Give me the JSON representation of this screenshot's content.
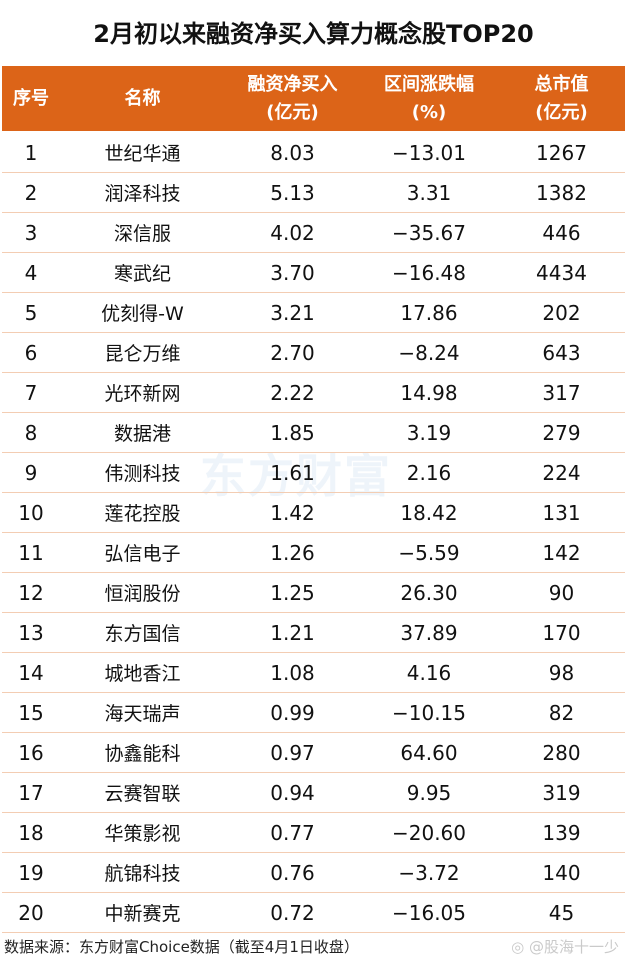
{
  "title": "2月初以来融资净买入算力概念股TOP20",
  "headers": [
    [
      "序号",
      ""
    ],
    [
      "名称",
      ""
    ],
    [
      "融资净买入",
      "(亿元)"
    ],
    [
      "区间涨跌幅",
      "(%)"
    ],
    [
      "总市值",
      "(亿元)"
    ]
  ],
  "rows": [
    [
      "1",
      "世纪华通",
      "8.03",
      "−13.01",
      "1267"
    ],
    [
      "2",
      "润泽科技",
      "5.13",
      "3.31",
      "1382"
    ],
    [
      "3",
      "深信服",
      "4.02",
      "−35.67",
      "446"
    ],
    [
      "4",
      "寒武纪",
      "3.70",
      "−16.48",
      "4434"
    ],
    [
      "5",
      "优刻得-W",
      "3.21",
      "17.86",
      "202"
    ],
    [
      "6",
      "昆仑万维",
      "2.70",
      "−8.24",
      "643"
    ],
    [
      "7",
      "光环新网",
      "2.22",
      "14.98",
      "317"
    ],
    [
      "8",
      "数据港",
      "1.85",
      "3.19",
      "279"
    ],
    [
      "9",
      "伟测科技",
      "1.61",
      "2.16",
      "224"
    ],
    [
      "10",
      "莲花控股",
      "1.42",
      "18.42",
      "131"
    ],
    [
      "11",
      "弘信电子",
      "1.26",
      "−5.59",
      "142"
    ],
    [
      "12",
      "恒润股份",
      "1.25",
      "26.30",
      "90"
    ],
    [
      "13",
      "东方国信",
      "1.21",
      "37.89",
      "170"
    ],
    [
      "14",
      "城地香江",
      "1.08",
      "4.16",
      "98"
    ],
    [
      "15",
      "海天瑞声",
      "0.99",
      "−10.15",
      "82"
    ],
    [
      "16",
      "协鑫能科",
      "0.97",
      "64.60",
      "280"
    ],
    [
      "17",
      "云赛智联",
      "0.94",
      "9.95",
      "319"
    ],
    [
      "18",
      "华策影视",
      "0.77",
      "−20.60",
      "139"
    ],
    [
      "19",
      "航锦科技",
      "0.76",
      "−3.72",
      "140"
    ],
    [
      "20",
      "中新赛克",
      "0.72",
      "−16.05",
      "45"
    ]
  ],
  "footer": "数据来源：东方财富Choice数据（截至4月1日收盘）",
  "watermark": "东方财富",
  "weibo_watermark": "@股海十一少",
  "colors": {
    "header_bg": "#DC6418",
    "row_border": "#F3CDB3"
  }
}
